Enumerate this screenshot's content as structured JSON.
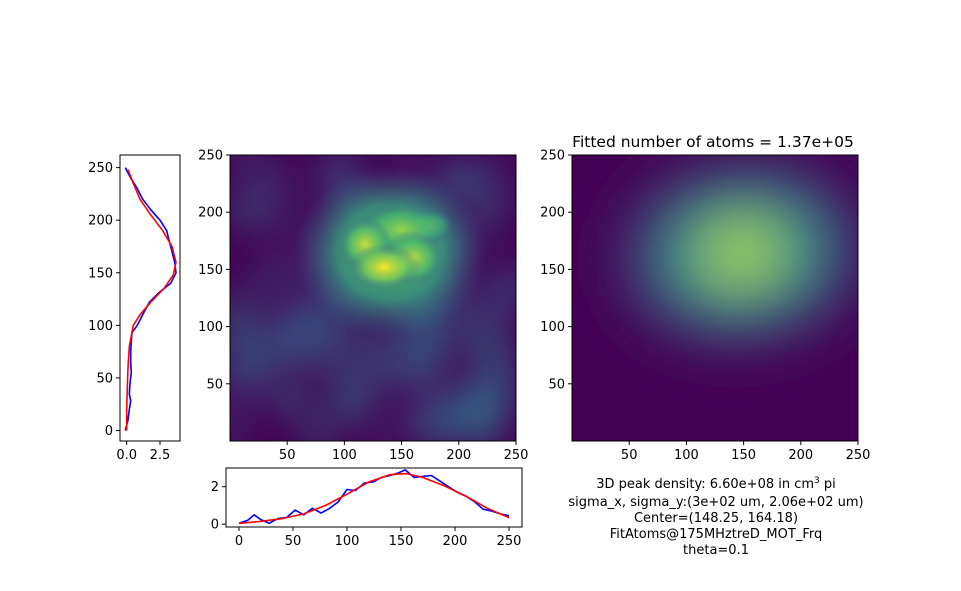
{
  "figure": {
    "right_title": "Fitted number of atoms = 1.37e+05",
    "caption": {
      "density_prefix": "3D peak density: 6.60e+08 in cm",
      "density_sup": "3",
      "density_suffix": " pi",
      "sigma": "sigma_x, sigma_y:(3e+02 um, 2.06e+02 um)",
      "center": "Center=(148.25, 164.18)",
      "name": "FitAtoms@175MHztreD_MOT_Frq",
      "theta": "theta=0.1"
    }
  },
  "chart_data": [
    {
      "id": "y-profile",
      "type": "line",
      "orientation": "vertical",
      "xlim": [
        -0.5,
        4.0
      ],
      "ylim": [
        -10,
        262
      ],
      "xticks": [
        0.0,
        2.5
      ],
      "xtick_labels": [
        "0.0",
        "2.5"
      ],
      "yticks": [
        0,
        50,
        100,
        150,
        200,
        250
      ],
      "ytick_labels": [
        "0",
        "50",
        "100",
        "150",
        "200",
        "250"
      ],
      "series": [
        {
          "color": "#0000ff",
          "points": [
            [
              -0.1,
              0
            ],
            [
              0.1,
              10
            ],
            [
              0.2,
              20
            ],
            [
              0.3,
              28
            ],
            [
              0.2,
              35
            ],
            [
              0.25,
              45
            ],
            [
              0.35,
              55
            ],
            [
              0.3,
              65
            ],
            [
              0.3,
              75
            ],
            [
              0.35,
              85
            ],
            [
              0.4,
              93
            ],
            [
              0.8,
              100
            ],
            [
              1.2,
              110
            ],
            [
              1.7,
              122
            ],
            [
              2.5,
              132
            ],
            [
              3.3,
              140
            ],
            [
              3.7,
              150
            ],
            [
              3.6,
              160
            ],
            [
              3.4,
              170
            ],
            [
              3.2,
              180
            ],
            [
              3.0,
              190
            ],
            [
              2.5,
              200
            ],
            [
              1.8,
              210
            ],
            [
              1.2,
              220
            ],
            [
              0.8,
              230
            ],
            [
              0.3,
              240
            ],
            [
              -0.1,
              250
            ]
          ]
        },
        {
          "color": "#ff0000",
          "points": [
            [
              0.0,
              0
            ],
            [
              0.0,
              20
            ],
            [
              0.05,
              40
            ],
            [
              0.1,
              60
            ],
            [
              0.2,
              80
            ],
            [
              0.5,
              100
            ],
            [
              1.0,
              110
            ],
            [
              1.8,
              122
            ],
            [
              2.8,
              135
            ],
            [
              3.5,
              148
            ],
            [
              3.7,
              160
            ],
            [
              3.4,
              175
            ],
            [
              2.7,
              190
            ],
            [
              1.8,
              205
            ],
            [
              1.0,
              220
            ],
            [
              0.5,
              235
            ],
            [
              0.1,
              248
            ]
          ]
        }
      ]
    },
    {
      "id": "raw-image",
      "type": "heatmap",
      "colormap": "viridis",
      "xlim": [
        0,
        250
      ],
      "ylim": [
        0,
        250
      ],
      "xticks": [
        50,
        100,
        150,
        200,
        250
      ],
      "xtick_labels": [
        "50",
        "100",
        "150",
        "200",
        "250"
      ],
      "yticks": [
        50,
        100,
        150,
        200,
        250
      ],
      "ytick_labels": [
        "50",
        "100",
        "150",
        "200",
        "250"
      ],
      "blobs": [
        {
          "x": 135,
          "y": 152,
          "sx": 16,
          "sy": 10,
          "amp": 1.0
        },
        {
          "x": 118,
          "y": 172,
          "sx": 12,
          "sy": 12,
          "amp": 0.85
        },
        {
          "x": 160,
          "y": 160,
          "sx": 14,
          "sy": 12,
          "amp": 0.8
        },
        {
          "x": 150,
          "y": 185,
          "sx": 20,
          "sy": 12,
          "amp": 0.7
        },
        {
          "x": 175,
          "y": 188,
          "sx": 10,
          "sy": 8,
          "amp": 0.6
        },
        {
          "x": 140,
          "y": 165,
          "sx": 42,
          "sy": 38,
          "amp": 0.55
        }
      ]
    },
    {
      "id": "x-profile",
      "type": "line",
      "xlim": [
        -12,
        262
      ],
      "ylim": [
        -0.15,
        3.0
      ],
      "xticks": [
        0,
        50,
        100,
        150,
        200,
        250
      ],
      "xtick_labels": [
        "0",
        "50",
        "100",
        "150",
        "200",
        "250"
      ],
      "yticks": [
        0,
        2
      ],
      "ytick_labels": [
        "0",
        "2"
      ],
      "series": [
        {
          "color": "#0000ff",
          "points": [
            [
              0,
              0.05
            ],
            [
              8,
              0.2
            ],
            [
              14,
              0.5
            ],
            [
              20,
              0.25
            ],
            [
              28,
              0.05
            ],
            [
              36,
              0.3
            ],
            [
              44,
              0.35
            ],
            [
              52,
              0.75
            ],
            [
              60,
              0.5
            ],
            [
              68,
              0.85
            ],
            [
              76,
              0.6
            ],
            [
              84,
              0.85
            ],
            [
              92,
              1.2
            ],
            [
              100,
              1.85
            ],
            [
              108,
              1.8
            ],
            [
              116,
              2.2
            ],
            [
              124,
              2.25
            ],
            [
              132,
              2.5
            ],
            [
              140,
              2.6
            ],
            [
              148,
              2.75
            ],
            [
              154,
              2.9
            ],
            [
              162,
              2.5
            ],
            [
              170,
              2.55
            ],
            [
              178,
              2.6
            ],
            [
              186,
              2.3
            ],
            [
              194,
              2.0
            ],
            [
              202,
              1.7
            ],
            [
              210,
              1.5
            ],
            [
              218,
              1.2
            ],
            [
              226,
              0.8
            ],
            [
              234,
              0.7
            ],
            [
              242,
              0.55
            ],
            [
              250,
              0.45
            ]
          ]
        },
        {
          "color": "#ff0000",
          "points": [
            [
              0,
              0.05
            ],
            [
              20,
              0.15
            ],
            [
              40,
              0.3
            ],
            [
              60,
              0.55
            ],
            [
              80,
              1.0
            ],
            [
              100,
              1.6
            ],
            [
              120,
              2.25
            ],
            [
              140,
              2.65
            ],
            [
              155,
              2.7
            ],
            [
              170,
              2.5
            ],
            [
              190,
              2.05
            ],
            [
              210,
              1.5
            ],
            [
              230,
              0.85
            ],
            [
              250,
              0.35
            ]
          ]
        }
      ]
    },
    {
      "id": "fit-image",
      "type": "heatmap",
      "colormap": "viridis",
      "xlim": [
        0,
        250
      ],
      "ylim": [
        0,
        250
      ],
      "xticks": [
        50,
        100,
        150,
        200,
        250
      ],
      "xtick_labels": [
        "50",
        "100",
        "150",
        "200",
        "250"
      ],
      "yticks": [
        50,
        100,
        150,
        200,
        250
      ],
      "ytick_labels": [
        "50",
        "100",
        "150",
        "200",
        "250"
      ],
      "gaussian": {
        "cx": 148.25,
        "cy": 164.18,
        "sx": 52,
        "sy": 38,
        "theta": 0.1
      }
    }
  ]
}
